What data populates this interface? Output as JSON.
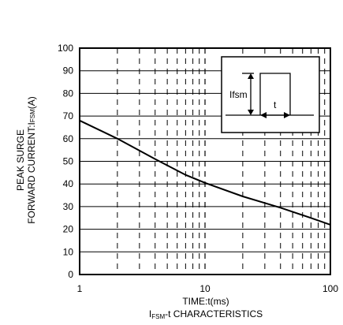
{
  "chart_data": {
    "type": "line",
    "x_scale": "log",
    "xlim": [
      1,
      100
    ],
    "ylim": [
      0,
      100
    ],
    "x_ticks": [
      "1",
      "10",
      "100"
    ],
    "y_ticks": [
      "0",
      "10",
      "20",
      "30",
      "40",
      "50",
      "60",
      "70",
      "80",
      "90",
      "100"
    ],
    "ylabel_line1": "PEAK SURGE",
    "ylabel_line2_main": "FORWARD CURRENT:I",
    "ylabel_line2_sub": "FSM",
    "ylabel_line2_end": "(A)",
    "xlabel": "TIME:t(ms)",
    "caption_main": "I",
    "caption_sub": "FSM",
    "caption_end": "-t CHARACTERISTICS",
    "grid": {
      "horizontal": "solid",
      "vertical": "dashed"
    },
    "series": [
      {
        "x": [
          1,
          2,
          4,
          7,
          10,
          20,
          40,
          70,
          100
        ],
        "y": [
          68,
          60,
          51,
          44,
          40.5,
          34.5,
          29.5,
          25,
          22
        ]
      }
    ],
    "inset": {
      "label_amplitude": "Ifsm",
      "label_duration": "t"
    }
  }
}
